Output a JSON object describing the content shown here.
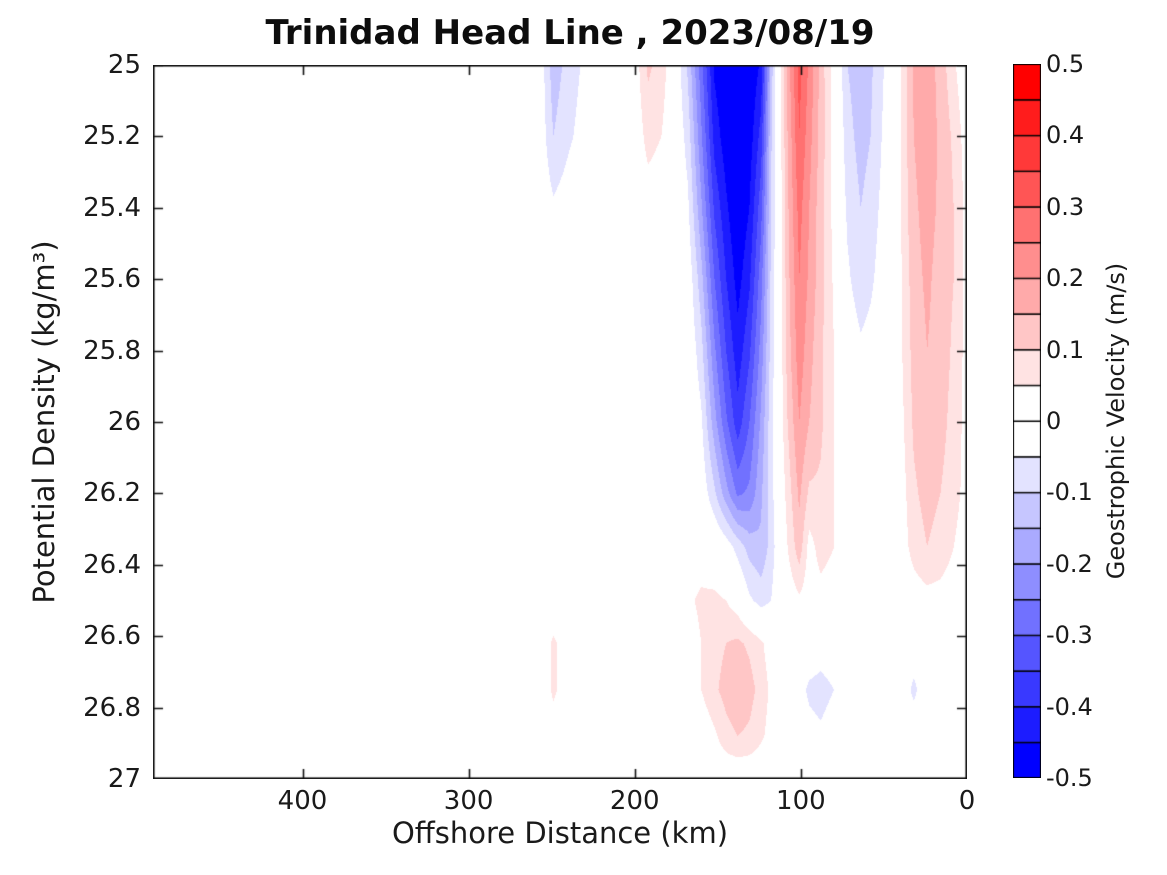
{
  "title": "Trinidad Head Line , 2023/08/19",
  "x_axis": {
    "label": "Offshore Distance (km)",
    "ticks": [
      "400",
      "300",
      "200",
      "100",
      "0"
    ],
    "tick_values": [
      400,
      300,
      200,
      100,
      0
    ],
    "direction": "reversed"
  },
  "y_axis": {
    "label": "Potential Density (kg/m³)",
    "ticks": [
      "25",
      "25.2",
      "25.4",
      "25.6",
      "25.8",
      "26",
      "26.2",
      "26.4",
      "26.6",
      "26.8",
      "27"
    ],
    "tick_values": [
      25,
      25.2,
      25.4,
      25.6,
      25.8,
      26,
      26.2,
      26.4,
      26.6,
      26.8,
      27
    ],
    "direction": "reversed"
  },
  "colorbar": {
    "label": "Geostrophic Velocity (m/s)",
    "ticks": [
      "0.5",
      "0.4",
      "0.3",
      "0.2",
      "0.1",
      "0",
      "-0.1",
      "-0.2",
      "-0.3",
      "-0.4",
      "-0.5"
    ],
    "tick_values": [
      0.5,
      0.4,
      0.3,
      0.2,
      0.1,
      0,
      -0.1,
      -0.2,
      -0.3,
      -0.4,
      -0.5
    ],
    "range": [
      -0.5,
      0.5
    ],
    "segment_step": 0.05,
    "max_positive_color": "#ff0000",
    "max_negative_color": "#0000ff",
    "zero_color": "#ffffff",
    "border_color": "#000000"
  },
  "chart_data": {
    "type": "heatmap",
    "title": "Trinidad Head Line , 2023/08/19",
    "xlabel": "Offshore Distance (km)",
    "ylabel": "Potential Density (kg/m³)",
    "zlabel": "Geostrophic Velocity (m/s)",
    "x_range_km": [
      0,
      490
    ],
    "sigma_range": [
      25,
      27
    ],
    "contour_interval": 0.05,
    "x_km": [
      0,
      8,
      16,
      24,
      32,
      40,
      50,
      58,
      64,
      72,
      80,
      88,
      95,
      101,
      108,
      113,
      118,
      124,
      131,
      138,
      145,
      152,
      160,
      168,
      176,
      184,
      192,
      200,
      212,
      228,
      240,
      249,
      258,
      270,
      300,
      360,
      490
    ],
    "sigma": [
      25.0,
      25.2,
      25.4,
      25.6,
      25.8,
      26.0,
      26.2,
      26.35,
      26.5,
      26.62,
      26.75,
      26.88,
      27.0
    ],
    "velocity_ms": [
      [
        0.0,
        0.06,
        0.13,
        0.18,
        0.16,
        0.05,
        -0.05,
        -0.11,
        -0.13,
        -0.1,
        0.02,
        0.13,
        0.24,
        0.32,
        0.17,
        0.02,
        -0.13,
        -0.44,
        -0.5,
        -0.53,
        -0.5,
        -0.46,
        -0.28,
        -0.11,
        0.0,
        0.08,
        0.11,
        0.02,
        0.0,
        -0.03,
        -0.08,
        -0.13,
        0.0,
        0.0,
        0.0,
        0.0,
        0.0
      ],
      [
        0.02,
        0.09,
        0.14,
        0.18,
        0.15,
        0.05,
        -0.04,
        -0.1,
        -0.12,
        -0.08,
        0.03,
        0.13,
        0.22,
        0.3,
        0.15,
        0.02,
        -0.11,
        -0.38,
        -0.48,
        -0.51,
        -0.48,
        -0.42,
        -0.24,
        -0.07,
        0.0,
        0.05,
        0.07,
        0.01,
        0.0,
        -0.02,
        -0.06,
        -0.1,
        0.0,
        0.0,
        0.0,
        0.0,
        0.0
      ],
      [
        0.03,
        0.1,
        0.14,
        0.17,
        0.14,
        0.05,
        -0.03,
        -0.08,
        -0.1,
        -0.06,
        0.03,
        0.12,
        0.2,
        0.27,
        0.14,
        0.01,
        -0.1,
        -0.32,
        -0.45,
        -0.5,
        -0.44,
        -0.36,
        -0.19,
        -0.04,
        0.0,
        0.01,
        0.02,
        0.0,
        0.0,
        0.0,
        -0.02,
        -0.04,
        0.0,
        0.0,
        0.0,
        0.0,
        0.0
      ],
      [
        0.03,
        0.1,
        0.13,
        0.16,
        0.13,
        0.04,
        -0.02,
        -0.06,
        -0.08,
        -0.04,
        0.04,
        0.12,
        0.19,
        0.25,
        0.13,
        0.01,
        -0.09,
        -0.27,
        -0.41,
        -0.47,
        -0.4,
        -0.3,
        -0.13,
        -0.01,
        0.0,
        0.0,
        0.0,
        0.0,
        0.0,
        0.0,
        0.0,
        -0.01,
        0.0,
        0.0,
        0.0,
        0.0,
        0.0
      ],
      [
        0.03,
        0.09,
        0.13,
        0.15,
        0.12,
        0.04,
        -0.01,
        -0.03,
        -0.04,
        -0.01,
        0.05,
        0.11,
        0.17,
        0.23,
        0.12,
        0.01,
        -0.08,
        -0.23,
        -0.36,
        -0.43,
        -0.35,
        -0.24,
        -0.08,
        0.0,
        0.0,
        0.0,
        0.0,
        0.0,
        0.0,
        0.0,
        0.0,
        0.0,
        0.0,
        0.0,
        0.0,
        0.0,
        0.0
      ],
      [
        0.03,
        0.08,
        0.12,
        0.14,
        0.11,
        0.03,
        0.0,
        -0.01,
        -0.02,
        0.0,
        0.05,
        0.11,
        0.15,
        0.2,
        0.1,
        0.01,
        -0.07,
        -0.19,
        -0.3,
        -0.38,
        -0.29,
        -0.18,
        -0.04,
        0.0,
        0.0,
        0.0,
        0.0,
        0.0,
        0.0,
        0.0,
        0.0,
        0.0,
        0.0,
        0.0,
        0.0,
        0.0,
        0.0
      ],
      [
        0.03,
        0.07,
        0.1,
        0.12,
        0.09,
        0.02,
        0.0,
        0.0,
        0.0,
        0.0,
        0.05,
        0.09,
        0.09,
        0.16,
        0.07,
        0.0,
        -0.07,
        -0.16,
        -0.24,
        -0.26,
        -0.18,
        -0.09,
        -0.01,
        0.0,
        0.0,
        0.0,
        0.0,
        0.0,
        0.0,
        0.0,
        0.0,
        0.0,
        0.0,
        0.0,
        0.0,
        0.0,
        0.0
      ],
      [
        0.02,
        0.05,
        0.08,
        0.1,
        0.07,
        0.02,
        0.0,
        0.0,
        0.0,
        0.0,
        0.05,
        0.07,
        0.03,
        0.13,
        0.05,
        -0.01,
        -0.08,
        -0.14,
        -0.12,
        -0.07,
        -0.02,
        0.01,
        0.02,
        0.01,
        0.0,
        0.0,
        0.0,
        0.0,
        0.0,
        0.0,
        0.0,
        0.0,
        0.0,
        0.0,
        0.0,
        0.0,
        0.0
      ],
      [
        0.01,
        0.02,
        0.03,
        0.03,
        0.02,
        0.01,
        0.0,
        0.0,
        0.0,
        0.0,
        0.02,
        0.03,
        0.02,
        0.04,
        0.01,
        -0.01,
        -0.05,
        -0.07,
        -0.04,
        0.02,
        0.05,
        0.06,
        0.06,
        0.04,
        0.01,
        0.0,
        0.0,
        0.0,
        0.0,
        0.0,
        0.0,
        0.0,
        0.0,
        0.0,
        0.0,
        0.0,
        0.0
      ],
      [
        0.0,
        0.0,
        0.0,
        -0.01,
        -0.02,
        -0.01,
        0.0,
        0.0,
        0.0,
        0.0,
        -0.01,
        -0.02,
        -0.01,
        0.0,
        0.01,
        0.01,
        0.02,
        0.06,
        0.09,
        0.11,
        0.1,
        0.08,
        0.05,
        0.02,
        0.0,
        0.0,
        0.0,
        0.0,
        0.0,
        0.0,
        0.02,
        0.06,
        0.0,
        0.0,
        0.0,
        0.0,
        0.0
      ],
      [
        0.0,
        0.0,
        0.0,
        -0.02,
        -0.06,
        -0.02,
        0.0,
        0.0,
        0.0,
        -0.01,
        -0.05,
        -0.07,
        -0.06,
        -0.03,
        0.0,
        0.02,
        0.04,
        0.08,
        0.12,
        0.14,
        0.12,
        0.09,
        0.05,
        0.02,
        0.0,
        0.0,
        0.0,
        0.0,
        0.0,
        0.0,
        0.02,
        0.06,
        0.0,
        0.0,
        0.0,
        0.0,
        0.0
      ],
      [
        0.0,
        0.0,
        0.0,
        -0.01,
        -0.02,
        0.0,
        0.0,
        0.0,
        0.0,
        0.0,
        -0.02,
        -0.04,
        -0.03,
        -0.01,
        0.0,
        0.01,
        0.03,
        0.06,
        0.09,
        0.1,
        0.08,
        0.04,
        0.01,
        0.0,
        0.0,
        0.0,
        0.0,
        0.0,
        0.0,
        0.0,
        0.0,
        0.02,
        0.0,
        0.0,
        0.0,
        0.0,
        0.0
      ],
      [
        0.0,
        0.0,
        0.0,
        0.0,
        0.0,
        0.0,
        0.0,
        0.0,
        0.0,
        0.0,
        0.0,
        0.0,
        0.0,
        0.0,
        0.0,
        0.0,
        0.0,
        0.0,
        0.0,
        0.0,
        0.0,
        0.0,
        0.0,
        0.0,
        0.0,
        0.0,
        0.0,
        0.0,
        0.0,
        0.0,
        0.0,
        0.0,
        0.0,
        0.0,
        0.0,
        0.0,
        0.0
      ]
    ]
  }
}
